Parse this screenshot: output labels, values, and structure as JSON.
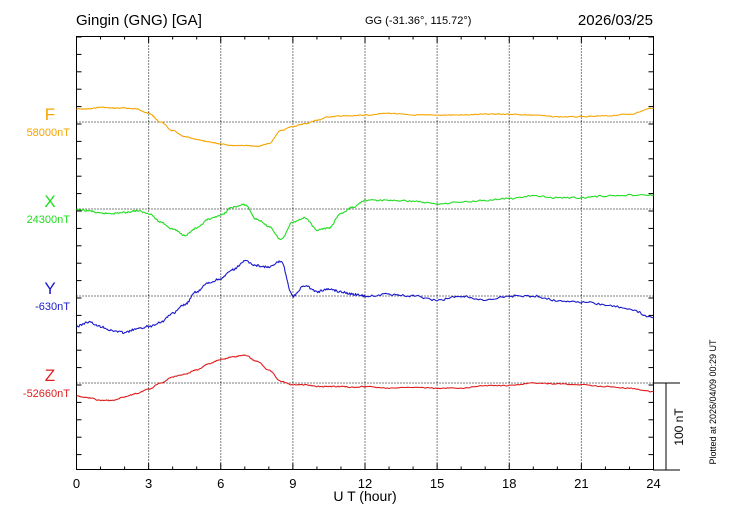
{
  "header": {
    "station": "Gingin (GNG)  [GA]",
    "coords": "GG (-31.36°, 115.72°)",
    "date": "2026/03/25"
  },
  "footer": {
    "plotted": "Plotted at 2026/04/09 00:29 UT"
  },
  "scale": {
    "label": "100 nT",
    "value_nt": 100
  },
  "chart_data": {
    "type": "line",
    "xlabel": "U T (hour)",
    "xlim": [
      0,
      24
    ],
    "xticks": [
      0,
      3,
      6,
      9,
      12,
      15,
      18,
      21,
      24
    ],
    "grid": true,
    "series": [
      {
        "name": "F",
        "baseline_label": "58000nT",
        "baseline_nt": 58000,
        "color": "#f5a500",
        "x": [
          0,
          0.5,
          1,
          1.5,
          2,
          2.5,
          3,
          3.5,
          4,
          4.5,
          5,
          5.5,
          6,
          6.5,
          7,
          7.5,
          8,
          8.5,
          9,
          9.5,
          10,
          10.5,
          11,
          11.5,
          12,
          13,
          14,
          15,
          16,
          17,
          18,
          19,
          20,
          21,
          22,
          23,
          24
        ],
        "y": [
          58015,
          58015,
          58017,
          58016,
          58016,
          58015,
          58010,
          58000,
          57990,
          57983,
          57980,
          57977,
          57975,
          57973,
          57973,
          57972,
          57975,
          57990,
          57995,
          57998,
          58002,
          58006,
          58007,
          58007,
          58008,
          58010,
          58008,
          58008,
          58008,
          58009,
          58009,
          58008,
          58006,
          58006,
          58007,
          58009,
          58016
        ]
      },
      {
        "name": "X",
        "baseline_label": "24300nT",
        "baseline_nt": 24300,
        "color": "#22dd22",
        "x": [
          0,
          0.5,
          1,
          1.5,
          2,
          2.5,
          3,
          3.5,
          4,
          4.5,
          5,
          5.5,
          6,
          6.5,
          7,
          7.5,
          8,
          8.5,
          9,
          9.5,
          10,
          10.5,
          11,
          11.5,
          12,
          13,
          14,
          15,
          16,
          17,
          18,
          19,
          20,
          21,
          22,
          23,
          24
        ],
        "y": [
          24299,
          24298,
          24295,
          24295,
          24296,
          24298,
          24295,
          24285,
          24277,
          24270,
          24278,
          24288,
          24293,
          24302,
          24305,
          24288,
          24280,
          24265,
          24285,
          24290,
          24276,
          24278,
          24295,
          24302,
          24310,
          24310,
          24309,
          24306,
          24308,
          24310,
          24312,
          24315,
          24313,
          24313,
          24315,
          24316,
          24316
        ]
      },
      {
        "name": "Y",
        "baseline_label": "-630nT",
        "baseline_nt": -630,
        "color": "#1a1acc",
        "x": [
          0,
          0.5,
          1,
          1.5,
          2,
          2.5,
          3,
          3.5,
          4,
          4.5,
          5,
          5.5,
          6,
          6.5,
          7,
          7.5,
          8,
          8.5,
          9,
          9.5,
          10,
          10.5,
          11,
          11.5,
          12,
          13,
          14,
          15,
          16,
          17,
          18,
          19,
          20,
          21,
          22,
          23,
          24
        ],
        "y": [
          -665,
          -660,
          -665,
          -670,
          -672,
          -668,
          -665,
          -660,
          -650,
          -640,
          -625,
          -615,
          -610,
          -600,
          -590,
          -595,
          -597,
          -590,
          -630,
          -618,
          -625,
          -622,
          -625,
          -628,
          -630,
          -628,
          -630,
          -635,
          -630,
          -635,
          -630,
          -630,
          -635,
          -637,
          -640,
          -645,
          -655
        ]
      },
      {
        "name": "Z",
        "baseline_label": "-52660nT",
        "baseline_nt": -52660,
        "color": "#e02020",
        "x": [
          0,
          0.5,
          1,
          1.5,
          2,
          2.5,
          3,
          3.5,
          4,
          4.5,
          5,
          5.5,
          6,
          6.5,
          7,
          7.5,
          8,
          8.5,
          9,
          9.5,
          10,
          10.5,
          11,
          11.5,
          12,
          13,
          14,
          15,
          16,
          17,
          18,
          19,
          20,
          21,
          22,
          23,
          24
        ],
        "y": [
          -52675,
          -52677,
          -52680,
          -52680,
          -52676,
          -52672,
          -52667,
          -52660,
          -52653,
          -52650,
          -52645,
          -52638,
          -52633,
          -52630,
          -52628,
          -52635,
          -52645,
          -52658,
          -52662,
          -52662,
          -52664,
          -52664,
          -52664,
          -52665,
          -52664,
          -52666,
          -52665,
          -52666,
          -52666,
          -52663,
          -52663,
          -52660,
          -52661,
          -52662,
          -52664,
          -52666,
          -52670
        ]
      }
    ]
  }
}
